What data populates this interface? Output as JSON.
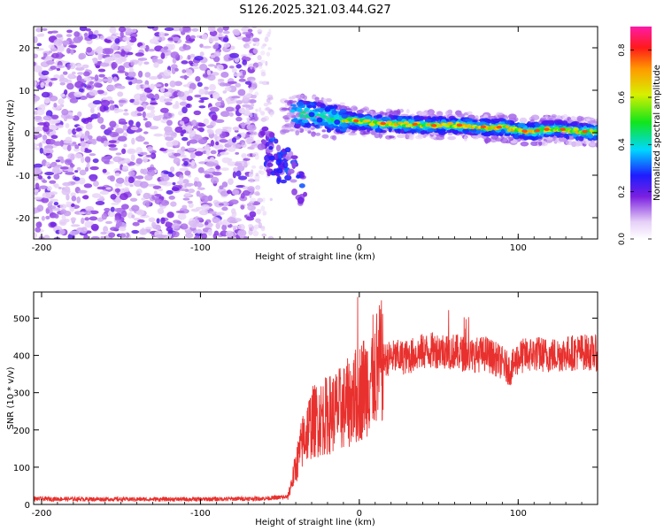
{
  "title": "S126.2025.321.03.44.G27",
  "chart_data": [
    {
      "type": "heatmap",
      "xlabel": "Height of straight line (km)",
      "ylabel": "Frequency (Hz)",
      "xlim": [
        -205,
        150
      ],
      "ylim": [
        -25,
        25
      ],
      "xticks": [
        -200,
        -100,
        0,
        100
      ],
      "yticks": [
        20,
        10,
        0,
        -10,
        -20
      ],
      "ridge": {
        "x": [
          -40,
          -30,
          -20,
          -10,
          0,
          10,
          20,
          30,
          40,
          50,
          60,
          70,
          80,
          90,
          100,
          110,
          120,
          130,
          140,
          150
        ],
        "freq_hz": [
          4.5,
          4.2,
          3.5,
          3.0,
          2.7,
          2.2,
          2.0,
          2.0,
          1.8,
          1.7,
          1.8,
          1.6,
          1.2,
          1.3,
          0.5,
          0.4,
          0.8,
          0.7,
          0.3,
          0.2
        ]
      },
      "colorbar": {
        "label": "Normalized spectral amplitude",
        "range": [
          0,
          0.9
        ],
        "ticks": [
          "0.0",
          "0.2",
          "0.4",
          "0.6",
          "0.8"
        ]
      }
    },
    {
      "type": "line",
      "xlabel": "Height of straight line (km)",
      "ylabel": "SNR (10 * v/v)",
      "xlim": [
        -205,
        150
      ],
      "ylim": [
        0,
        570
      ],
      "xticks": [
        -200,
        -100,
        0,
        100
      ],
      "yticks": [
        0,
        100,
        200,
        300,
        400,
        500
      ],
      "color": "#e8312e",
      "series": [
        {
          "name": "SNR",
          "x": [
            -205,
            -150,
            -100,
            -60,
            -45,
            -40,
            -35,
            -30,
            -25,
            -20,
            -15,
            -10,
            -5,
            0,
            5,
            10,
            15,
            20,
            30,
            40,
            50,
            60,
            70,
            80,
            90,
            95,
            100,
            110,
            120,
            130,
            140,
            150
          ],
          "y": [
            15,
            14,
            14,
            16,
            20,
            100,
            180,
            220,
            230,
            240,
            250,
            260,
            280,
            300,
            330,
            360,
            385,
            395,
            395,
            410,
            415,
            410,
            400,
            405,
            380,
            360,
            395,
            405,
            400,
            405,
            410,
            405
          ]
        }
      ]
    }
  ]
}
